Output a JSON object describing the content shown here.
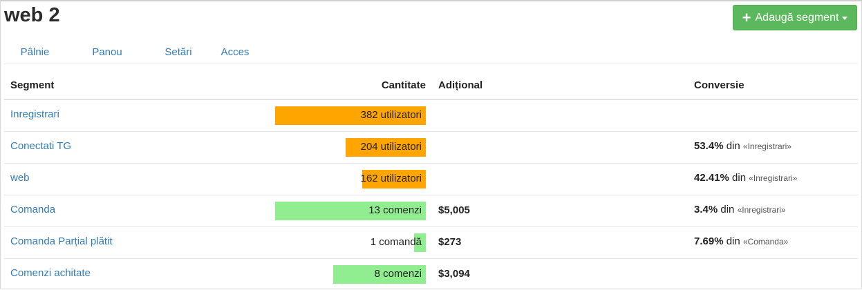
{
  "page": {
    "title": "web 2"
  },
  "toolbar": {
    "add_label": "Adaugă segment"
  },
  "tabs": [
    {
      "label": "Pâlnie",
      "active": true
    },
    {
      "label": "Panou",
      "active": false
    },
    {
      "label": "Setări",
      "active": false
    },
    {
      "label": "Acces",
      "active": false
    }
  ],
  "table": {
    "headers": {
      "segment": "Segment",
      "quantity": "Cantitate",
      "additional": "Adițional",
      "conversion": "Conversie"
    },
    "rows": [
      {
        "segment": "Inregistrari",
        "quantity": "382 utilizatori",
        "bar_fraction": 1.0,
        "bar_color": "#ffa500",
        "additional": "",
        "conv_pct": "",
        "conv_from": "",
        "conv_ref": ""
      },
      {
        "segment": "Conectati TG",
        "quantity": "204 utilizatori",
        "bar_fraction": 0.534,
        "bar_color": "#ffa500",
        "additional": "",
        "conv_pct": "53.4%",
        "conv_from": "din",
        "conv_ref": "«Inregistrari»"
      },
      {
        "segment": "web",
        "quantity": "162 utilizatori",
        "bar_fraction": 0.4241,
        "bar_color": "#ffa500",
        "additional": "",
        "conv_pct": "42.41%",
        "conv_from": "din",
        "conv_ref": "«Inregistrari»"
      },
      {
        "segment": "Comanda",
        "quantity": "13 comenzi",
        "bar_fraction": 1.0,
        "bar_color": "#90ee90",
        "additional": "$5,005",
        "conv_pct": "3.4%",
        "conv_from": "din",
        "conv_ref": "«Inregistrari»"
      },
      {
        "segment": "Comanda Parțial plătit",
        "quantity": "1 comandă",
        "bar_fraction": 0.0769,
        "bar_color": "#90ee90",
        "additional": "$273",
        "conv_pct": "7.69%",
        "conv_from": "din",
        "conv_ref": "«Comanda»"
      },
      {
        "segment": "Comenzi achitate",
        "quantity": "8 comenzi",
        "bar_fraction": 0.6154,
        "bar_color": "#90ee90",
        "additional": "$3,094",
        "conv_pct": "",
        "conv_from": "",
        "conv_ref": ""
      }
    ]
  }
}
